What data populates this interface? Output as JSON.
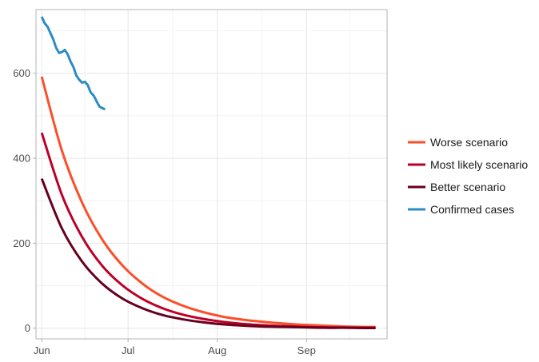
{
  "chart_data": {
    "type": "line",
    "title": "",
    "xlabel": "",
    "ylabel": "",
    "x_range": [
      "2020-05-30",
      "2020-09-29"
    ],
    "ylim": [
      -25,
      750
    ],
    "x_ticks": [
      {
        "date": "2020-06-01",
        "label": "Jun"
      },
      {
        "date": "2020-07-01",
        "label": "Jul"
      },
      {
        "date": "2020-08-01",
        "label": "Aug"
      },
      {
        "date": "2020-09-01",
        "label": "Sep"
      }
    ],
    "y_ticks": [
      0,
      200,
      400,
      600
    ],
    "grid": true,
    "legend_position": "right",
    "series": [
      {
        "name": "Worse scenario",
        "color": "#fc4e2a",
        "points": [
          [
            "2020-06-01",
            592
          ],
          [
            "2020-06-08",
            418
          ],
          [
            "2020-06-15",
            296
          ],
          [
            "2020-06-22",
            209
          ],
          [
            "2020-06-29",
            148
          ],
          [
            "2020-07-06",
            105
          ],
          [
            "2020-07-13",
            74
          ],
          [
            "2020-07-20",
            53
          ],
          [
            "2020-07-27",
            38
          ],
          [
            "2020-08-03",
            27
          ],
          [
            "2020-08-10",
            20
          ],
          [
            "2020-08-17",
            15
          ],
          [
            "2020-08-24",
            11
          ],
          [
            "2020-08-31",
            8
          ],
          [
            "2020-09-07",
            6
          ],
          [
            "2020-09-14",
            4
          ],
          [
            "2020-09-21",
            3
          ],
          [
            "2020-09-25",
            3
          ]
        ]
      },
      {
        "name": "Most likely scenario",
        "color": "#bd0026",
        "points": [
          [
            "2020-06-01",
            460
          ],
          [
            "2020-06-08",
            314
          ],
          [
            "2020-06-15",
            215
          ],
          [
            "2020-06-22",
            147
          ],
          [
            "2020-06-29",
            101
          ],
          [
            "2020-07-06",
            69
          ],
          [
            "2020-07-13",
            47
          ],
          [
            "2020-07-20",
            32
          ],
          [
            "2020-07-27",
            22
          ],
          [
            "2020-08-03",
            15
          ],
          [
            "2020-08-10",
            10
          ],
          [
            "2020-08-17",
            7
          ],
          [
            "2020-08-24",
            5
          ],
          [
            "2020-08-31",
            3
          ],
          [
            "2020-09-07",
            2
          ],
          [
            "2020-09-14",
            1.5
          ],
          [
            "2020-09-21",
            1
          ],
          [
            "2020-09-25",
            1
          ]
        ]
      },
      {
        "name": "Better scenario",
        "color": "#67001f",
        "points": [
          [
            "2020-06-01",
            352
          ],
          [
            "2020-06-08",
            235
          ],
          [
            "2020-06-15",
            157
          ],
          [
            "2020-06-22",
            105
          ],
          [
            "2020-06-29",
            70
          ],
          [
            "2020-07-06",
            47
          ],
          [
            "2020-07-13",
            31
          ],
          [
            "2020-07-20",
            21
          ],
          [
            "2020-07-27",
            14
          ],
          [
            "2020-08-03",
            9
          ],
          [
            "2020-08-10",
            6
          ],
          [
            "2020-08-17",
            4
          ],
          [
            "2020-08-24",
            3
          ],
          [
            "2020-08-31",
            2
          ],
          [
            "2020-09-07",
            1
          ],
          [
            "2020-09-14",
            1
          ],
          [
            "2020-09-21",
            0.5
          ],
          [
            "2020-09-25",
            0.5
          ]
        ]
      },
      {
        "name": "Confirmed cases",
        "color": "#2b8cc4",
        "points": [
          [
            "2020-06-01",
            733
          ],
          [
            "2020-06-02",
            718
          ],
          [
            "2020-06-03",
            710
          ],
          [
            "2020-06-04",
            695
          ],
          [
            "2020-06-05",
            680
          ],
          [
            "2020-06-06",
            660
          ],
          [
            "2020-06-07",
            648
          ],
          [
            "2020-06-08",
            650
          ],
          [
            "2020-06-09",
            655
          ],
          [
            "2020-06-10",
            645
          ],
          [
            "2020-06-11",
            628
          ],
          [
            "2020-06-12",
            615
          ],
          [
            "2020-06-13",
            595
          ],
          [
            "2020-06-14",
            585
          ],
          [
            "2020-06-15",
            578
          ],
          [
            "2020-06-16",
            580
          ],
          [
            "2020-06-17",
            572
          ],
          [
            "2020-06-18",
            555
          ],
          [
            "2020-06-19",
            548
          ],
          [
            "2020-06-20",
            535
          ],
          [
            "2020-06-21",
            522
          ],
          [
            "2020-06-22",
            518
          ],
          [
            "2020-06-23",
            515
          ]
        ]
      }
    ]
  }
}
